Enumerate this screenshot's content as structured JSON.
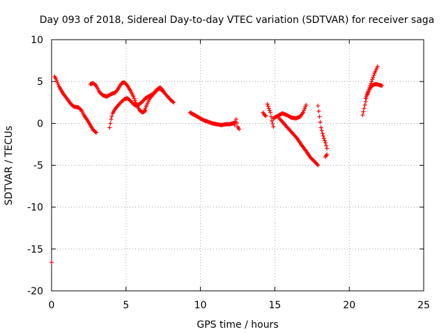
{
  "chart_data": {
    "type": "scatter",
    "title": "Day 093 of 2018, Sidereal Day-to-day VTEC variation (SDTVAR) for receiver saga",
    "xlabel": "GPS time / hours",
    "ylabel": "SDTVAR / TECUs",
    "xlim": [
      0,
      25
    ],
    "ylim": [
      -20,
      10
    ],
    "xticks": [
      0,
      5,
      10,
      15,
      20,
      25
    ],
    "yticks": [
      -20,
      -15,
      -10,
      -5,
      0,
      5,
      10
    ],
    "xtick_labels": [
      "0",
      "5",
      "10",
      "15",
      "20",
      "25"
    ],
    "ytick_labels": [
      "-20",
      "-15",
      "-10",
      "-5",
      "0",
      "5",
      "10"
    ],
    "grid": true,
    "marker": "plus",
    "color": "#ff0000",
    "series": [
      {
        "name": "SDTVAR",
        "segments": [
          [
            [
              0.0,
              -16.6
            ]
          ],
          [
            [
              0.2,
              5.6
            ],
            [
              0.3,
              5.3
            ],
            [
              0.5,
              4.4
            ],
            [
              0.8,
              3.5
            ],
            [
              1.1,
              2.8
            ],
            [
              1.3,
              2.3
            ],
            [
              1.5,
              2.0
            ],
            [
              1.8,
              1.9
            ],
            [
              2.0,
              1.6
            ],
            [
              2.2,
              0.9
            ],
            [
              2.4,
              0.4
            ],
            [
              2.6,
              -0.2
            ],
            [
              2.8,
              -0.8
            ],
            [
              3.0,
              -1.1
            ]
          ],
          [
            [
              2.6,
              4.7
            ],
            [
              2.8,
              4.8
            ],
            [
              3.0,
              4.5
            ],
            [
              3.2,
              3.8
            ],
            [
              3.4,
              3.4
            ],
            [
              3.7,
              3.2
            ],
            [
              4.0,
              3.5
            ],
            [
              4.3,
              3.7
            ],
            [
              4.5,
              4.2
            ],
            [
              4.7,
              4.8
            ],
            [
              4.9,
              4.9
            ],
            [
              5.1,
              4.5
            ],
            [
              5.3,
              3.9
            ],
            [
              5.5,
              3.2
            ],
            [
              5.7,
              2.3
            ],
            [
              5.9,
              1.6
            ],
            [
              6.1,
              1.3
            ],
            [
              6.3,
              1.5
            ]
          ],
          [
            [
              3.9,
              -0.5
            ],
            [
              4.0,
              0.5
            ],
            [
              4.1,
              1.2
            ],
            [
              4.3,
              1.8
            ],
            [
              4.5,
              2.2
            ],
            [
              4.7,
              2.6
            ],
            [
              4.9,
              2.9
            ],
            [
              5.1,
              3.0
            ],
            [
              5.3,
              2.7
            ],
            [
              5.5,
              2.3
            ],
            [
              5.7,
              2.1
            ],
            [
              5.9,
              2.3
            ],
            [
              6.1,
              2.6
            ],
            [
              6.3,
              3.0
            ],
            [
              6.5,
              3.2
            ],
            [
              6.8,
              3.5
            ],
            [
              7.0,
              3.9
            ],
            [
              7.2,
              4.2
            ],
            [
              7.4,
              4.0
            ],
            [
              7.6,
              3.6
            ],
            [
              7.8,
              3.2
            ],
            [
              8.0,
              2.8
            ],
            [
              8.2,
              2.5
            ]
          ],
          [
            [
              6.2,
              1.4
            ],
            [
              6.4,
              2.2
            ],
            [
              6.6,
              3.0
            ],
            [
              6.9,
              3.6
            ],
            [
              7.1,
              4.0
            ],
            [
              7.3,
              4.3
            ],
            [
              7.5,
              3.9
            ]
          ],
          [
            [
              9.3,
              1.3
            ],
            [
              9.6,
              1.0
            ],
            [
              9.9,
              0.7
            ],
            [
              10.2,
              0.4
            ],
            [
              10.5,
              0.2
            ],
            [
              10.8,
              0.0
            ],
            [
              11.1,
              -0.1
            ],
            [
              11.4,
              -0.2
            ],
            [
              11.7,
              -0.1
            ],
            [
              12.0,
              -0.1
            ],
            [
              12.3,
              0.1
            ]
          ],
          [
            [
              12.3,
              -0.2
            ],
            [
              12.4,
              0.5
            ],
            [
              12.5,
              -0.4
            ],
            [
              12.6,
              -0.7
            ]
          ],
          [
            [
              14.2,
              1.3
            ],
            [
              14.3,
              1.0
            ],
            [
              14.4,
              0.9
            ]
          ],
          [
            [
              14.5,
              2.3
            ],
            [
              14.6,
              1.8
            ],
            [
              14.7,
              1.3
            ],
            [
              14.8,
              0.3
            ],
            [
              14.9,
              -0.4
            ]
          ],
          [
            [
              14.9,
              0.6
            ],
            [
              15.2,
              0.9
            ],
            [
              15.5,
              1.2
            ],
            [
              15.8,
              1.0
            ],
            [
              16.1,
              0.7
            ],
            [
              16.4,
              0.6
            ],
            [
              16.7,
              0.8
            ],
            [
              16.9,
              1.3
            ],
            [
              17.1,
              2.2
            ]
          ],
          [
            [
              15.3,
              0.6
            ],
            [
              15.6,
              0.0
            ],
            [
              15.9,
              -0.6
            ],
            [
              16.2,
              -1.2
            ],
            [
              16.5,
              -1.8
            ],
            [
              16.8,
              -2.6
            ],
            [
              17.1,
              -3.3
            ],
            [
              17.4,
              -4.1
            ],
            [
              17.7,
              -4.6
            ],
            [
              17.9,
              -5.0
            ]
          ],
          [
            [
              17.9,
              2.1
            ],
            [
              18.0,
              0.8
            ],
            [
              18.1,
              -0.5
            ],
            [
              18.2,
              -1.2
            ],
            [
              18.3,
              -1.8
            ],
            [
              18.4,
              -2.3
            ],
            [
              18.5,
              -3.0
            ]
          ],
          [
            [
              18.4,
              -4.0
            ],
            [
              18.5,
              -3.7
            ]
          ],
          [
            [
              20.9,
              1.0
            ],
            [
              21.0,
              1.8
            ],
            [
              21.1,
              2.6
            ],
            [
              21.2,
              3.4
            ],
            [
              21.4,
              4.2
            ],
            [
              21.6,
              4.6
            ],
            [
              21.8,
              4.7
            ],
            [
              22.0,
              4.6
            ],
            [
              22.2,
              4.5
            ]
          ],
          [
            [
              21.1,
              3.0
            ],
            [
              21.3,
              4.0
            ],
            [
              21.5,
              5.0
            ],
            [
              21.7,
              6.0
            ],
            [
              21.9,
              6.8
            ]
          ]
        ]
      }
    ]
  }
}
